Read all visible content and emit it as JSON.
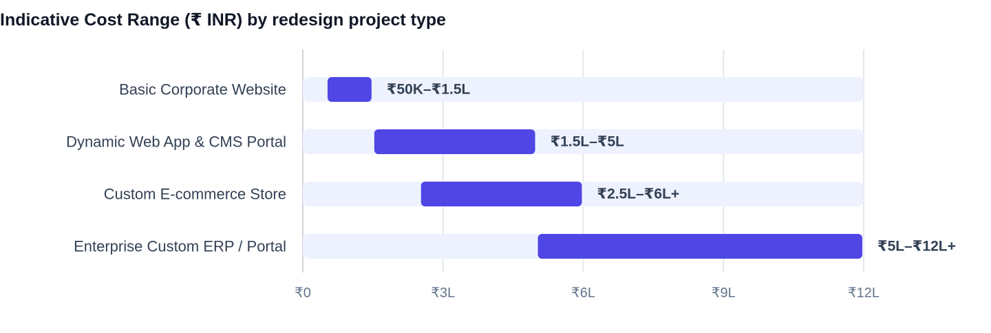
{
  "chart_data": {
    "type": "bar",
    "orientation": "horizontal-range",
    "title": "Indicative Cost Range (₹ INR) by redesign project type",
    "xlabel": "",
    "ylabel": "",
    "xlim": [
      0,
      12
    ],
    "unit": "lakh INR",
    "grid": true,
    "legend": "none",
    "x_ticks": [
      {
        "value": 0,
        "label": "₹0"
      },
      {
        "value": 3,
        "label": "₹3L"
      },
      {
        "value": 6,
        "label": "₹6L"
      },
      {
        "value": 9,
        "label": "₹9L"
      },
      {
        "value": 12,
        "label": "₹12L"
      }
    ],
    "categories": [
      "Basic Corporate Website",
      "Dynamic Web App & CMS Portal",
      "Custom E-commerce Store",
      "Enterprise Custom ERP / Portal"
    ],
    "ranges": [
      {
        "low": 0.5,
        "high": 1.5,
        "label": "₹50K–₹1.5L"
      },
      {
        "low": 1.5,
        "high": 5,
        "label": "₹1.5L–₹5L"
      },
      {
        "low": 2.5,
        "high": 6,
        "label": "₹2.5L–₹6L+"
      },
      {
        "low": 5,
        "high": 12,
        "label": "₹5L–₹12L+"
      }
    ],
    "colors": {
      "range_bar": "#4f46e5",
      "track": "#eef2ff",
      "grid": "#e5e7eb",
      "axis": "#d1d5db"
    }
  }
}
